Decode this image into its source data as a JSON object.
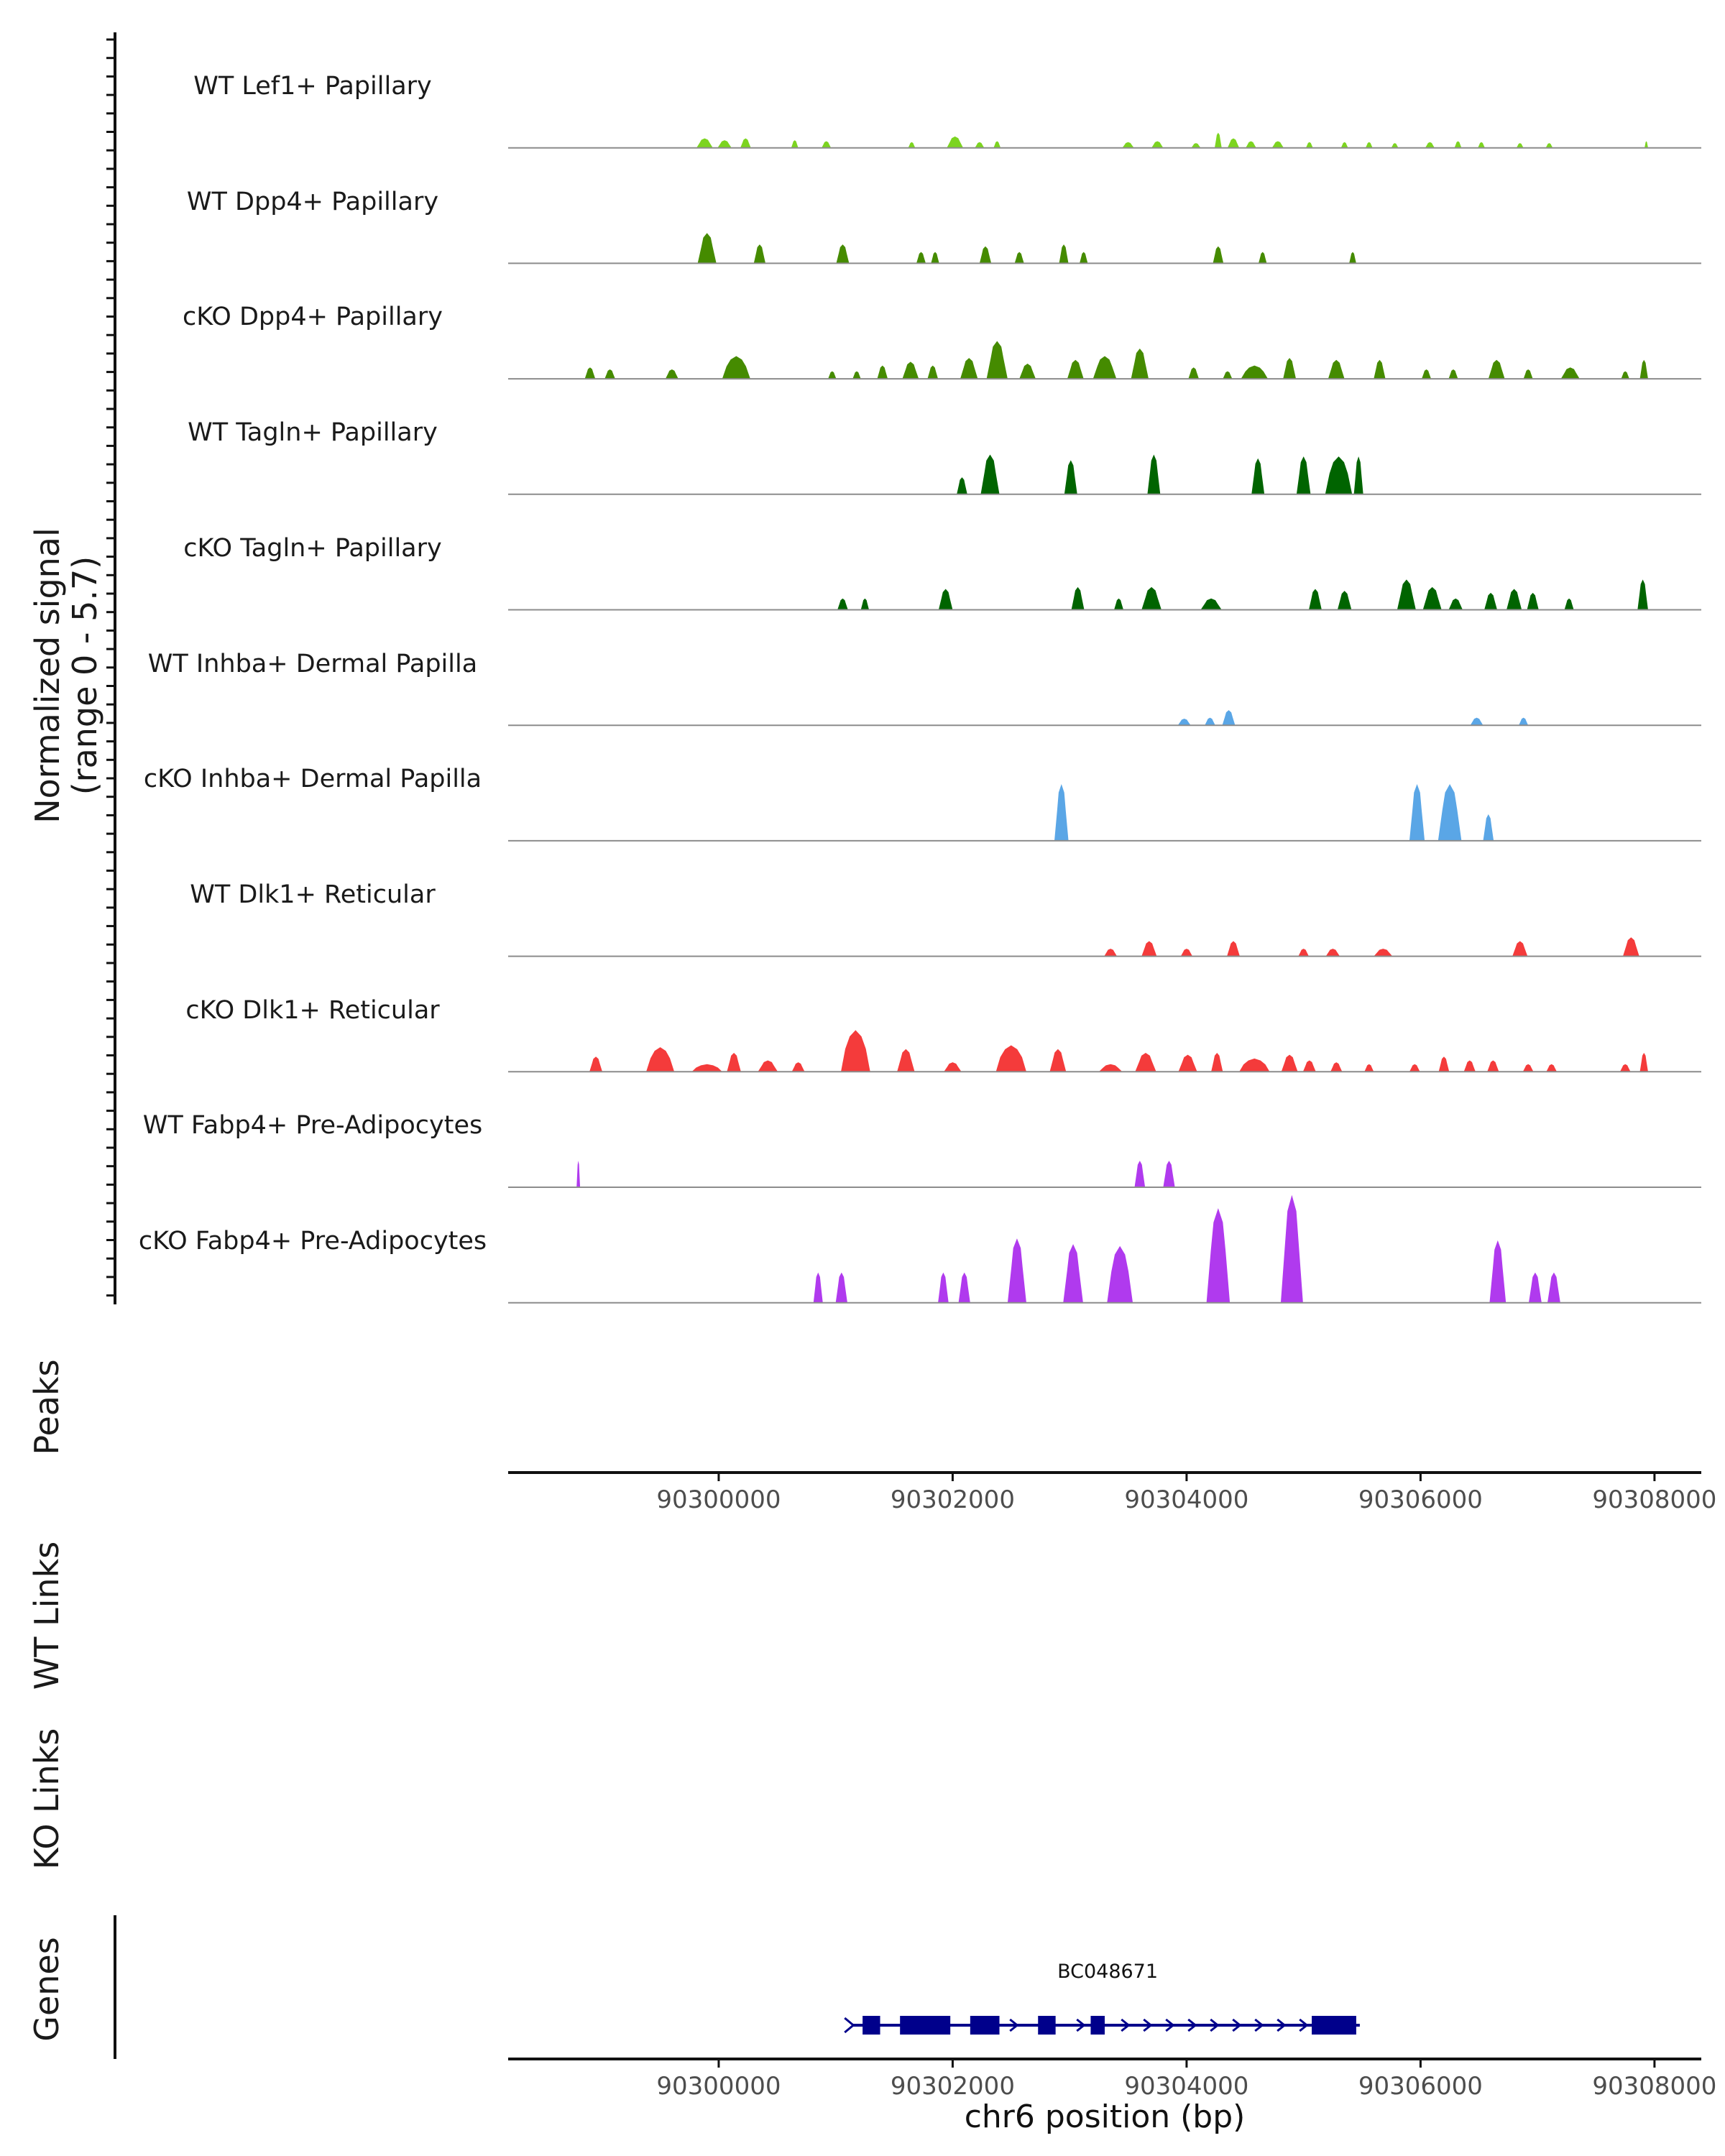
{
  "colors": {
    "Lef1": "#7CD420",
    "Dpp4": "#458B00",
    "Tagln": "#006400",
    "Inhba": "#5AA6E6",
    "Dlk1": "#F43B3B",
    "Fabp4": "#B03AEE",
    "gene": "#00008B",
    "baseline": "#8c8c8c"
  },
  "chart_data": {
    "type": "area",
    "title": "",
    "ylabel": "Normalized signal",
    "ylabel_range": "(range 0 - 5.7)",
    "ylim": [
      0,
      5.7
    ],
    "xlim": [
      90298200,
      90308400
    ],
    "xlabel": "chr6 position (bp)",
    "xticks": [
      90300000,
      90302000,
      90304000,
      90306000,
      90308000
    ],
    "xtick_labels": [
      "90300000",
      "90302000",
      "90304000",
      "90306000",
      "90308000"
    ],
    "tracks": [
      {
        "name": "WT Lef1+ Papillary",
        "color_key": "Lef1",
        "peaks": [
          [
            90299880,
            140,
            0.5
          ],
          [
            90300050,
            120,
            0.4
          ],
          [
            90300230,
            90,
            0.5
          ],
          [
            90300650,
            60,
            0.4
          ],
          [
            90300920,
            80,
            0.35
          ],
          [
            90301650,
            60,
            0.3
          ],
          [
            90302020,
            140,
            0.6
          ],
          [
            90302230,
            80,
            0.3
          ],
          [
            90302380,
            60,
            0.35
          ],
          [
            90303500,
            100,
            0.3
          ],
          [
            90303750,
            100,
            0.35
          ],
          [
            90304080,
            80,
            0.25
          ],
          [
            90304270,
            60,
            0.8
          ],
          [
            90304400,
            100,
            0.5
          ],
          [
            90304550,
            90,
            0.35
          ],
          [
            90304780,
            100,
            0.35
          ],
          [
            90305050,
            60,
            0.3
          ],
          [
            90305350,
            60,
            0.3
          ],
          [
            90305560,
            60,
            0.3
          ],
          [
            90305780,
            60,
            0.25
          ],
          [
            90306080,
            80,
            0.3
          ],
          [
            90306320,
            60,
            0.35
          ],
          [
            90306520,
            60,
            0.3
          ],
          [
            90306850,
            60,
            0.25
          ],
          [
            90307100,
            60,
            0.25
          ],
          [
            90307930,
            30,
            0.35
          ]
        ]
      },
      {
        "name": "WT Dpp4+ Papillary",
        "color_key": "Dpp4",
        "peaks": [
          [
            90299900,
            160,
            1.6
          ],
          [
            90300350,
            100,
            1.0
          ],
          [
            90301060,
            110,
            1.0
          ],
          [
            90301730,
            80,
            0.6
          ],
          [
            90301850,
            70,
            0.6
          ],
          [
            90302280,
            100,
            0.9
          ],
          [
            90302570,
            80,
            0.6
          ],
          [
            90302950,
            80,
            1.0
          ],
          [
            90303120,
            70,
            0.6
          ],
          [
            90304270,
            90,
            0.9
          ],
          [
            90304650,
            70,
            0.6
          ],
          [
            90305420,
            60,
            0.6
          ]
        ]
      },
      {
        "name": "cKO Dpp4+ Papillary",
        "color_key": "Dpp4",
        "peaks": [
          [
            90298900,
            90,
            0.6
          ],
          [
            90299070,
            90,
            0.5
          ],
          [
            90299600,
            110,
            0.5
          ],
          [
            90300150,
            240,
            1.2
          ],
          [
            90300970,
            70,
            0.4
          ],
          [
            90301180,
            70,
            0.4
          ],
          [
            90301400,
            90,
            0.7
          ],
          [
            90301640,
            140,
            0.9
          ],
          [
            90301830,
            90,
            0.7
          ],
          [
            90302140,
            150,
            1.1
          ],
          [
            90302380,
            180,
            2.0
          ],
          [
            90302640,
            140,
            0.8
          ],
          [
            90303050,
            140,
            1.0
          ],
          [
            90303300,
            200,
            1.2
          ],
          [
            90303600,
            150,
            1.6
          ],
          [
            90304060,
            90,
            0.6
          ],
          [
            90304350,
            80,
            0.4
          ],
          [
            90304580,
            230,
            0.7
          ],
          [
            90304880,
            110,
            1.1
          ],
          [
            90305280,
            140,
            1.0
          ],
          [
            90305650,
            100,
            1.0
          ],
          [
            90306050,
            80,
            0.5
          ],
          [
            90306280,
            80,
            0.5
          ],
          [
            90306650,
            140,
            1.0
          ],
          [
            90306920,
            80,
            0.5
          ],
          [
            90307280,
            160,
            0.6
          ],
          [
            90307750,
            70,
            0.4
          ],
          [
            90307910,
            70,
            1.0
          ]
        ]
      },
      {
        "name": "WT Tagln+ Papillary",
        "color_key": "Tagln",
        "peaks": [
          [
            90302080,
            90,
            0.9
          ],
          [
            90302320,
            160,
            2.1
          ],
          [
            90303010,
            110,
            1.8
          ],
          [
            90303720,
            110,
            2.1
          ],
          [
            90304610,
            110,
            1.9
          ],
          [
            90305000,
            120,
            2.0
          ],
          [
            90305300,
            230,
            2.0
          ],
          [
            90305470,
            80,
            2.0
          ]
        ]
      },
      {
        "name": "cKO Tagln+ Papillary",
        "color_key": "Tagln",
        "peaks": [
          [
            90301060,
            90,
            0.6
          ],
          [
            90301250,
            70,
            0.6
          ],
          [
            90301940,
            120,
            1.1
          ],
          [
            90303070,
            110,
            1.2
          ],
          [
            90303420,
            80,
            0.6
          ],
          [
            90303700,
            170,
            1.2
          ],
          [
            90304210,
            180,
            0.6
          ],
          [
            90305100,
            110,
            1.1
          ],
          [
            90305350,
            120,
            1.0
          ],
          [
            90305880,
            160,
            1.6
          ],
          [
            90306100,
            160,
            1.2
          ],
          [
            90306300,
            120,
            0.6
          ],
          [
            90306600,
            110,
            0.9
          ],
          [
            90306800,
            130,
            1.1
          ],
          [
            90306960,
            100,
            0.9
          ],
          [
            90307270,
            80,
            0.6
          ],
          [
            90307900,
            90,
            1.6
          ]
        ]
      },
      {
        "name": "WT Inhba+ Dermal Papilla",
        "color_key": "Inhba",
        "peaks": [
          [
            90303980,
            110,
            0.35
          ],
          [
            90304200,
            90,
            0.4
          ],
          [
            90304360,
            110,
            0.8
          ],
          [
            90306480,
            110,
            0.4
          ],
          [
            90306880,
            80,
            0.4
          ]
        ]
      },
      {
        "name": "cKO Inhba+ Dermal Papilla",
        "color_key": "Inhba",
        "peaks": [
          [
            90302930,
            120,
            3.0
          ],
          [
            90305970,
            130,
            3.0
          ],
          [
            90306250,
            200,
            3.0
          ],
          [
            90306580,
            90,
            1.4
          ]
        ]
      },
      {
        "name": "WT Dlk1+ Reticular",
        "color_key": "Dlk1",
        "peaks": [
          [
            90303350,
            110,
            0.4
          ],
          [
            90303680,
            130,
            0.8
          ],
          [
            90304000,
            100,
            0.4
          ],
          [
            90304400,
            110,
            0.8
          ],
          [
            90305000,
            90,
            0.4
          ],
          [
            90305250,
            120,
            0.4
          ],
          [
            90305680,
            160,
            0.4
          ],
          [
            90306850,
            130,
            0.8
          ],
          [
            90307800,
            140,
            1.0
          ]
        ]
      },
      {
        "name": "cKO Dlk1+ Reticular",
        "color_key": "Dlk1",
        "peaks": [
          [
            90298950,
            110,
            0.8
          ],
          [
            90299500,
            240,
            1.3
          ],
          [
            90299900,
            260,
            0.4
          ],
          [
            90300130,
            120,
            1.0
          ],
          [
            90300420,
            170,
            0.6
          ],
          [
            90300680,
            110,
            0.5
          ],
          [
            90301170,
            250,
            2.2
          ],
          [
            90301600,
            150,
            1.2
          ],
          [
            90302000,
            150,
            0.5
          ],
          [
            90302500,
            260,
            1.4
          ],
          [
            90302900,
            140,
            1.2
          ],
          [
            90303350,
            200,
            0.4
          ],
          [
            90303650,
            180,
            1.0
          ],
          [
            90304010,
            160,
            0.9
          ],
          [
            90304260,
            100,
            1.0
          ],
          [
            90304580,
            260,
            0.7
          ],
          [
            90304880,
            140,
            0.9
          ],
          [
            90305050,
            110,
            0.6
          ],
          [
            90305280,
            100,
            0.5
          ],
          [
            90305560,
            80,
            0.4
          ],
          [
            90305950,
            90,
            0.4
          ],
          [
            90306200,
            90,
            0.8
          ],
          [
            90306420,
            100,
            0.6
          ],
          [
            90306620,
            100,
            0.6
          ],
          [
            90306920,
            90,
            0.4
          ],
          [
            90307120,
            90,
            0.4
          ],
          [
            90307750,
            90,
            0.4
          ],
          [
            90307910,
            70,
            1.0
          ]
        ]
      },
      {
        "name": "WT Fabp4+ Pre-Adipocytes",
        "color_key": "Fabp4",
        "peaks": [
          [
            90298800,
            30,
            1.4
          ],
          [
            90303600,
            90,
            1.4
          ],
          [
            90303850,
            100,
            1.4
          ]
        ]
      },
      {
        "name": "cKO Fabp4+ Pre-Adipocytes",
        "color_key": "Fabp4",
        "peaks": [
          [
            90300850,
            80,
            1.6
          ],
          [
            90301050,
            100,
            1.6
          ],
          [
            90301920,
            90,
            1.6
          ],
          [
            90302100,
            100,
            1.6
          ],
          [
            90302550,
            160,
            3.4
          ],
          [
            90303030,
            170,
            3.1
          ],
          [
            90303430,
            220,
            3.0
          ],
          [
            90304270,
            200,
            5.0
          ],
          [
            90304900,
            190,
            5.7
          ],
          [
            90306660,
            140,
            3.3
          ],
          [
            90306980,
            110,
            1.6
          ],
          [
            90307140,
            110,
            1.6
          ]
        ]
      }
    ],
    "genes": [
      {
        "name": "BC048671",
        "start": 90301200,
        "end": 90305450,
        "strand": "+",
        "exons": [
          [
            90301230,
            90301380
          ],
          [
            90301550,
            90301980
          ],
          [
            90302150,
            90302400
          ],
          [
            90302730,
            90302880
          ],
          [
            90303180,
            90303300
          ],
          [
            90305070,
            90305450
          ]
        ]
      }
    ]
  },
  "panels": {
    "peaks_label": "Peaks",
    "wt_links_label": "WT Links",
    "ko_links_label": "KO Links",
    "genes_label": "Genes"
  }
}
